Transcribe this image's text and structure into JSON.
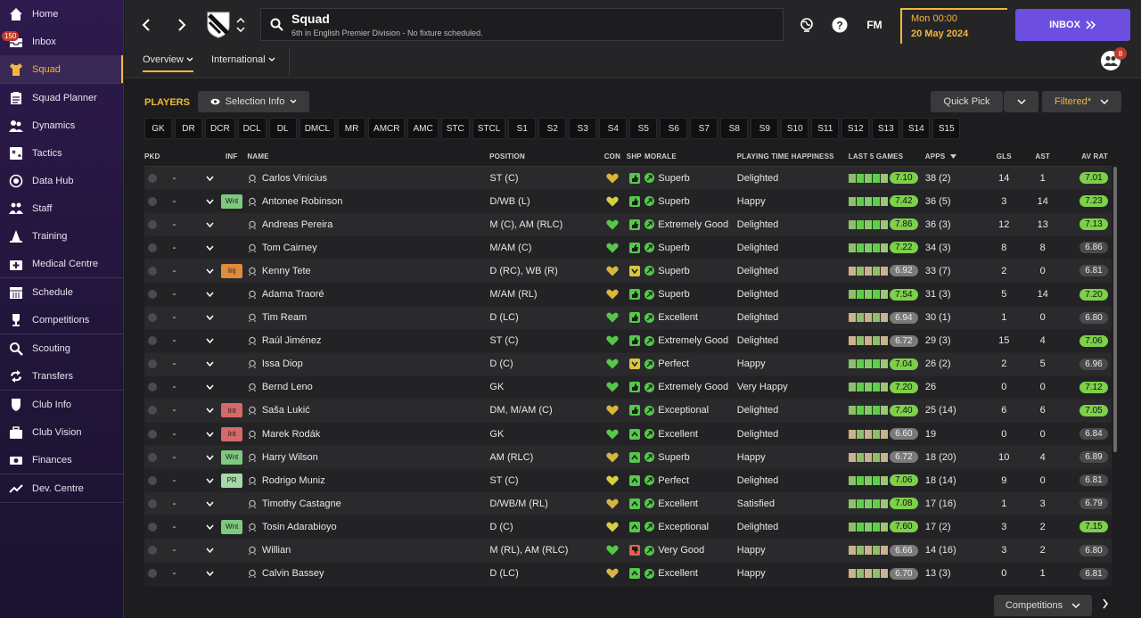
{
  "sidebar": {
    "groups": [
      [
        {
          "label": "Home",
          "icon": "home-icon"
        },
        {
          "label": "Inbox",
          "icon": "inbox-icon",
          "badge": "150"
        },
        {
          "label": "Squad",
          "icon": "shirt-icon",
          "active": true
        }
      ],
      [
        {
          "label": "Squad Planner",
          "icon": "clipboard-icon"
        },
        {
          "label": "Dynamics",
          "icon": "people-icon"
        },
        {
          "label": "Tactics",
          "icon": "tactics-icon"
        },
        {
          "label": "Data Hub",
          "icon": "datahub-icon"
        },
        {
          "label": "Staff",
          "icon": "staff-icon"
        },
        {
          "label": "Training",
          "icon": "cone-icon"
        },
        {
          "label": "Medical Centre",
          "icon": "medical-icon"
        }
      ],
      [
        {
          "label": "Schedule",
          "icon": "calendar-icon"
        },
        {
          "label": "Competitions",
          "icon": "trophy-icon"
        }
      ],
      [
        {
          "label": "Scouting",
          "icon": "magnifier-icon"
        },
        {
          "label": "Transfers",
          "icon": "transfer-icon"
        }
      ],
      [
        {
          "label": "Club Info",
          "icon": "shield-icon"
        },
        {
          "label": "Club Vision",
          "icon": "briefcase-icon"
        },
        {
          "label": "Finances",
          "icon": "money-icon"
        }
      ],
      [
        {
          "label": "Dev. Centre",
          "icon": "trend-icon"
        }
      ]
    ]
  },
  "header": {
    "title": "Squad",
    "subtitle": "6th in English Premier Division - No fixture scheduled.",
    "fm_label": "FM",
    "date_time": "Mon 00:00",
    "date": "20 May 2024",
    "inbox_label": "INBOX",
    "social_badge": "8",
    "tabs": [
      "Overview",
      "International"
    ]
  },
  "main": {
    "players_label": "PLAYERS",
    "selection_info_label": "Selection Info",
    "quick_pick_label": "Quick Pick",
    "filtered_label": "Filtered*",
    "competitions_label": "Competitions",
    "positions": [
      "GK",
      "DR",
      "DCR",
      "DCL",
      "DL",
      "DMCL",
      "MR",
      "AMCR",
      "AMC",
      "STC",
      "STCL",
      "S1",
      "S2",
      "S3",
      "S4",
      "S5",
      "S6",
      "S7",
      "S8",
      "S9",
      "S10",
      "S11",
      "S12",
      "S13",
      "S14",
      "S15"
    ],
    "columns": {
      "pkd": "PKD",
      "inf": "INF",
      "name": "NAME",
      "position": "POSITION",
      "con": "CON",
      "shp": "SHP",
      "morale": "MORALE",
      "pth": "PLAYING TIME HAPPINESS",
      "last5": "LAST 5 GAMES",
      "apps": "APPS",
      "gls": "GLS",
      "ast": "AST",
      "avrat": "AV RAT"
    },
    "rows": [
      {
        "sel": "-",
        "inf": "",
        "inf_color": "",
        "name": "Carlos Vinícius",
        "position": "ST (C)",
        "con": "#d9b640",
        "shp": "up",
        "morale": "Superb",
        "pth": "Delighted",
        "l5": "7.10",
        "l5_hi": true,
        "apps": "38 (2)",
        "gls": "14",
        "ast": "1",
        "av": "7.01",
        "av_hi": true
      },
      {
        "sel": "-",
        "inf": "Wnt",
        "inf_color": "#7fc97f",
        "name": "Antonee Robinson",
        "position": "D/WB (L)",
        "con": "#d9d040",
        "shp": "up",
        "morale": "Superb",
        "pth": "Happy",
        "l5": "7.42",
        "l5_hi": true,
        "apps": "36 (5)",
        "gls": "3",
        "ast": "14",
        "av": "7.23",
        "av_hi": true
      },
      {
        "sel": "-",
        "inf": "",
        "inf_color": "",
        "name": "Andreas Pereira",
        "position": "M (C), AM (RLC)",
        "con": "#55c84a",
        "shp": "up",
        "morale": "Extremely Good",
        "pth": "Delighted",
        "l5": "7.86",
        "l5_hi": true,
        "apps": "36 (3)",
        "gls": "12",
        "ast": "13",
        "av": "7.13",
        "av_hi": true
      },
      {
        "sel": "-",
        "inf": "",
        "inf_color": "",
        "name": "Tom Cairney",
        "position": "M/AM (C)",
        "con": "#55c84a",
        "shp": "up",
        "morale": "Superb",
        "pth": "Delighted",
        "l5": "7.22",
        "l5_hi": true,
        "apps": "34 (3)",
        "gls": "8",
        "ast": "8",
        "av": "6.86",
        "av_hi": false
      },
      {
        "sel": "-",
        "inf": "Inj",
        "inf_color": "#e08a3c",
        "name": "Kenny Tete",
        "position": "D (RC), WB (R)",
        "con": "#d9b640",
        "shp": "down",
        "morale": "Superb",
        "pth": "Delighted",
        "l5": "6.92",
        "l5_hi": false,
        "apps": "33 (7)",
        "gls": "2",
        "ast": "0",
        "av": "6.81",
        "av_hi": false
      },
      {
        "sel": "-",
        "inf": "",
        "inf_color": "",
        "name": "Adama Traoré",
        "position": "M/AM (RL)",
        "con": "#d9b640",
        "shp": "up",
        "morale": "Superb",
        "pth": "Delighted",
        "l5": "7.54",
        "l5_hi": true,
        "apps": "31 (3)",
        "gls": "5",
        "ast": "14",
        "av": "7.20",
        "av_hi": true
      },
      {
        "sel": "-",
        "inf": "",
        "inf_color": "",
        "name": "Tim Ream",
        "position": "D (LC)",
        "con": "#55c84a",
        "shp": "up",
        "morale": "Excellent",
        "pth": "Delighted",
        "l5": "6.94",
        "l5_hi": false,
        "apps": "30 (1)",
        "gls": "1",
        "ast": "0",
        "av": "6.80",
        "av_hi": false
      },
      {
        "sel": "-",
        "inf": "",
        "inf_color": "",
        "name": "Raúl Jiménez",
        "position": "ST (C)",
        "con": "#55c84a",
        "shp": "up",
        "morale": "Extremely Good",
        "pth": "Delighted",
        "l5": "6.72",
        "l5_hi": false,
        "apps": "29 (3)",
        "gls": "15",
        "ast": "4",
        "av": "7.06",
        "av_hi": true
      },
      {
        "sel": "-",
        "inf": "",
        "inf_color": "",
        "name": "Issa Diop",
        "position": "D (C)",
        "con": "#55c84a",
        "shp": "down",
        "morale": "Perfect",
        "pth": "Happy",
        "l5": "7.04",
        "l5_hi": true,
        "apps": "26 (2)",
        "gls": "2",
        "ast": "5",
        "av": "6.96",
        "av_hi": false
      },
      {
        "sel": "-",
        "inf": "",
        "inf_color": "",
        "name": "Bernd Leno",
        "position": "GK",
        "con": "#55c84a",
        "shp": "up",
        "morale": "Extremely Good",
        "pth": "Very Happy",
        "l5": "7.20",
        "l5_hi": true,
        "apps": "26",
        "gls": "0",
        "ast": "0",
        "av": "7.12",
        "av_hi": true
      },
      {
        "sel": "-",
        "inf": "Int",
        "inf_color": "#d46a6a",
        "name": "Saša Lukić",
        "position": "DM, M/AM (C)",
        "con": "#d9b640",
        "shp": "up",
        "morale": "Exceptional",
        "pth": "Delighted",
        "l5": "7.40",
        "l5_hi": true,
        "apps": "25 (14)",
        "gls": "6",
        "ast": "6",
        "av": "7.05",
        "av_hi": true
      },
      {
        "sel": "-",
        "inf": "Int",
        "inf_color": "#d46a6a",
        "name": "Marek Rodák",
        "position": "GK",
        "con": "#55c84a",
        "shp": "up2",
        "morale": "Excellent",
        "pth": "Delighted",
        "l5": "6.60",
        "l5_hi": false,
        "apps": "19",
        "gls": "0",
        "ast": "0",
        "av": "6.84",
        "av_hi": false
      },
      {
        "sel": "-",
        "inf": "Wnt",
        "inf_color": "#7fc97f",
        "name": "Harry Wilson",
        "position": "AM (RLC)",
        "con": "#d9b640",
        "shp": "up2",
        "morale": "Superb",
        "pth": "Happy",
        "l5": "6.72",
        "l5_hi": false,
        "apps": "18 (20)",
        "gls": "10",
        "ast": "4",
        "av": "6.89",
        "av_hi": false
      },
      {
        "sel": "-",
        "inf": "PR",
        "inf_color": "#a8d8a8",
        "name": "Rodrigo Muniz",
        "position": "ST (C)",
        "con": "#d9d040",
        "shp": "up2",
        "morale": "Perfect",
        "pth": "Delighted",
        "l5": "7.06",
        "l5_hi": true,
        "apps": "18 (14)",
        "gls": "9",
        "ast": "0",
        "av": "6.81",
        "av_hi": false
      },
      {
        "sel": "-",
        "inf": "",
        "inf_color": "",
        "name": "Timothy Castagne",
        "position": "D/WB/M (RL)",
        "con": "#d9b640",
        "shp": "up2",
        "morale": "Excellent",
        "pth": "Satisfied",
        "l5": "7.08",
        "l5_hi": true,
        "apps": "17 (16)",
        "gls": "1",
        "ast": "3",
        "av": "6.79",
        "av_hi": false
      },
      {
        "sel": "-",
        "inf": "Wnt",
        "inf_color": "#7fc97f",
        "name": "Tosin Adarabioyo",
        "position": "D (C)",
        "con": "#d9d040",
        "shp": "up2",
        "morale": "Exceptional",
        "pth": "Delighted",
        "l5": "7.60",
        "l5_hi": true,
        "apps": "17 (2)",
        "gls": "3",
        "ast": "2",
        "av": "7.15",
        "av_hi": true
      },
      {
        "sel": "-",
        "inf": "",
        "inf_color": "",
        "name": "Willian",
        "position": "M (RL), AM (RLC)",
        "con": "#55c84a",
        "shp": "bad",
        "morale": "Very Good",
        "pth": "Happy",
        "l5": "6.66",
        "l5_hi": false,
        "apps": "14 (16)",
        "gls": "3",
        "ast": "2",
        "av": "6.80",
        "av_hi": false
      },
      {
        "sel": "-",
        "inf": "",
        "inf_color": "",
        "name": "Calvin Bassey",
        "position": "D (LC)",
        "con": "#d9b640",
        "shp": "up2",
        "morale": "Excellent",
        "pth": "Happy",
        "l5": "6.70",
        "l5_hi": false,
        "apps": "13 (3)",
        "gls": "0",
        "ast": "1",
        "av": "6.81",
        "av_hi": false
      }
    ]
  }
}
